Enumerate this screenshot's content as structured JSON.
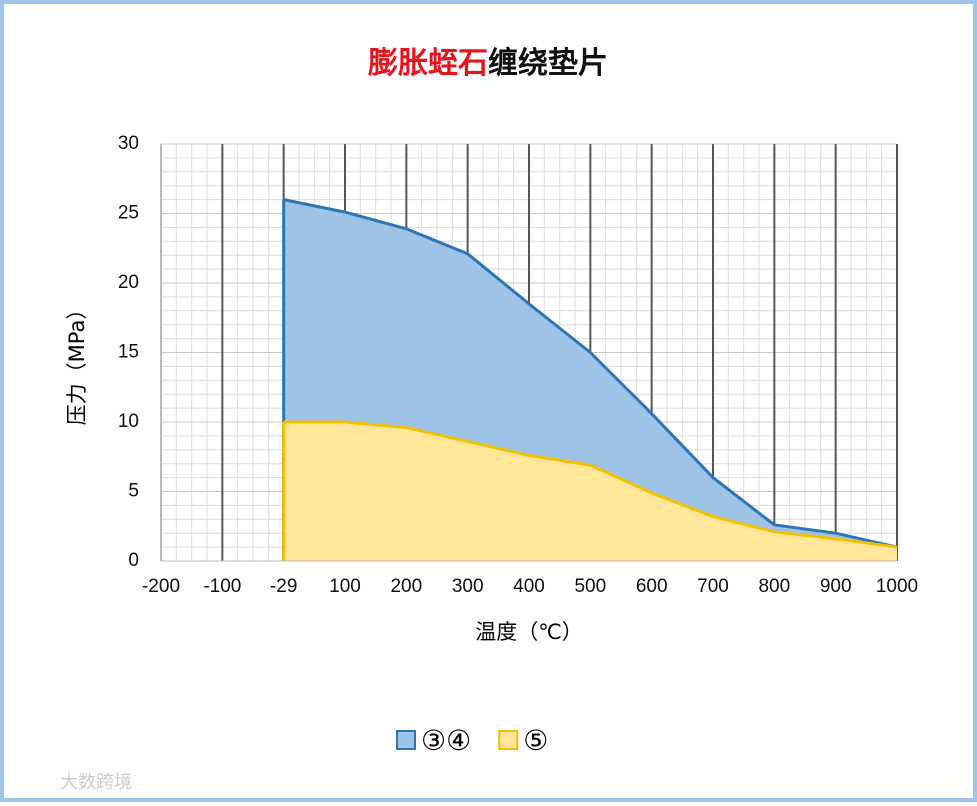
{
  "chart_data": {
    "type": "area",
    "title_segments": [
      {
        "text": "膨胀蛭石",
        "color": "#e8141b"
      },
      {
        "text": "缠绕垫片",
        "color": "#111111"
      }
    ],
    "x_label": "温度（℃）",
    "y_label": "压力（MPa）",
    "categories": [
      "-200",
      "-100",
      "-29",
      "100",
      "200",
      "300",
      "400",
      "500",
      "600",
      "700",
      "800",
      "900",
      "1000"
    ],
    "series": [
      {
        "name": "③④",
        "color": "#2e75b6",
        "fill": "#9dc3e6",
        "values": [
          null,
          null,
          26,
          25.1,
          23.9,
          22.1,
          18.5,
          15,
          10.6,
          6,
          2.6,
          2,
          1
        ]
      },
      {
        "name": "⑤",
        "color": "#f5c000",
        "fill": "#ffe699",
        "values": [
          null,
          null,
          10,
          10,
          9.6,
          8.6,
          7.6,
          6.9,
          4.9,
          3.2,
          2.1,
          1.6,
          1
        ]
      }
    ],
    "ylim": [
      0,
      30
    ],
    "yticks": [
      0,
      5,
      10,
      15,
      20,
      25,
      30
    ],
    "grid": true,
    "minor_grid": true,
    "legend": "bottom",
    "watermark": "大数跨境"
  }
}
